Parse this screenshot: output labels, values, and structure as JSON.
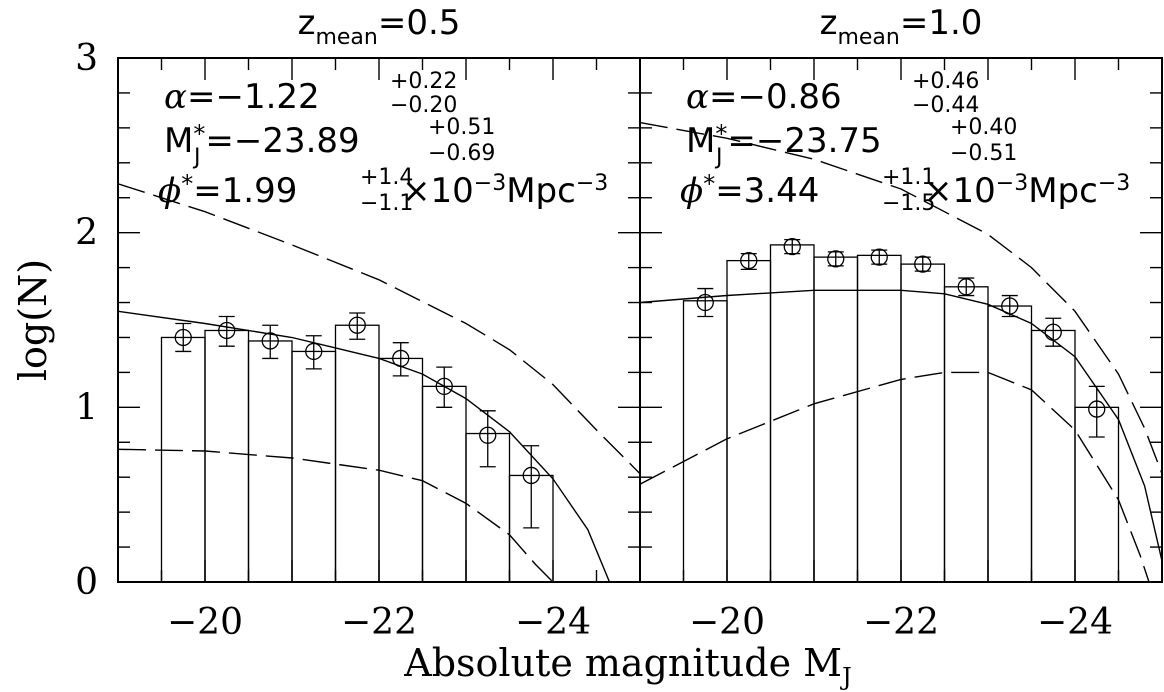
{
  "chart_data": {
    "type": "bar",
    "xlabel": "Absolute magnitude M",
    "xlabel_sub": "J",
    "ylabel": "log(N)",
    "xlim": [
      -19,
      -25
    ],
    "ylim": [
      0,
      3
    ],
    "xticks": [
      -20,
      -22,
      -24
    ],
    "xtick_labels": [
      "−20",
      "−22",
      "−24"
    ],
    "yticks": [
      0,
      1,
      2,
      3
    ],
    "ytick_labels": [
      "0",
      "1",
      "2",
      "3"
    ],
    "bin_edges": [
      -19.5,
      -20.0,
      -20.5,
      -21.0,
      -21.5,
      -22.0,
      -22.5,
      -23.0,
      -23.5,
      -24.0
    ],
    "panels": [
      {
        "title_main": "z",
        "title_sub": "mean",
        "title_value": "=0.5",
        "alpha": {
          "label": "α",
          "value": "=−1.22",
          "sup": "+0.22",
          "sub": "−0.20"
        },
        "mstar": {
          "label": "M",
          "label_sup": "*",
          "label_sub": "J",
          "value": "=−23.89",
          "sup": "+0.51",
          "sub": "−0.69"
        },
        "phistar": {
          "label": "ϕ",
          "label_sup": "*",
          "value": "=1.99",
          "sup": "+1.4",
          "sub": "−1.1",
          "unit": "×10",
          "unit_sup": "−3",
          "unit_tail": "Mpc",
          "unit_tail_sup": "−3"
        },
        "bins": [
          -19.75,
          -20.25,
          -20.75,
          -21.25,
          -21.75,
          -22.25,
          -22.75,
          -23.25,
          -23.75
        ],
        "values": [
          1.4,
          1.44,
          1.38,
          1.32,
          1.47,
          1.28,
          1.12,
          0.85,
          0.61
        ],
        "points": [
          1.4,
          1.44,
          1.38,
          1.32,
          1.47,
          1.28,
          1.12,
          0.84,
          0.61
        ],
        "err_lo": [
          0.08,
          0.09,
          0.1,
          0.1,
          0.08,
          0.1,
          0.12,
          0.18,
          0.3
        ],
        "err_hi": [
          0.08,
          0.08,
          0.09,
          0.09,
          0.07,
          0.09,
          0.11,
          0.14,
          0.17
        ],
        "solid_curve": [
          [
            -19.0,
            1.55
          ],
          [
            -20.0,
            1.48
          ],
          [
            -21.0,
            1.4
          ],
          [
            -21.5,
            1.34
          ],
          [
            -22.0,
            1.28
          ],
          [
            -22.5,
            1.19
          ],
          [
            -23.0,
            1.05
          ],
          [
            -23.5,
            0.86
          ],
          [
            -24.0,
            0.59
          ],
          [
            -24.4,
            0.3
          ],
          [
            -24.65,
            0.0
          ]
        ],
        "upper_dashed": [
          [
            -19.0,
            2.28
          ],
          [
            -20.0,
            2.12
          ],
          [
            -21.0,
            1.93
          ],
          [
            -22.0,
            1.73
          ],
          [
            -23.0,
            1.48
          ],
          [
            -23.5,
            1.33
          ],
          [
            -24.0,
            1.13
          ],
          [
            -24.5,
            0.87
          ],
          [
            -25.0,
            0.62
          ]
        ],
        "lower_dashed": [
          [
            -19.0,
            0.76
          ],
          [
            -20.0,
            0.75
          ],
          [
            -21.0,
            0.71
          ],
          [
            -22.0,
            0.64
          ],
          [
            -22.5,
            0.58
          ],
          [
            -23.0,
            0.45
          ],
          [
            -23.5,
            0.27
          ],
          [
            -23.8,
            0.1
          ],
          [
            -24.0,
            0.0
          ]
        ]
      },
      {
        "title_main": "z",
        "title_sub": "mean",
        "title_value": "=1.0",
        "alpha": {
          "label": "α",
          "value": "=−0.86",
          "sup": "+0.46",
          "sub": "−0.44"
        },
        "mstar": {
          "label": "M",
          "label_sup": "*",
          "label_sub": "J",
          "value": "=−23.75",
          "sup": "+0.40",
          "sub": "−0.51"
        },
        "phistar": {
          "label": "ϕ",
          "label_sup": "*",
          "value": "=3.44",
          "sup": "+1.1",
          "sub": "−1.5",
          "unit": "×10",
          "unit_sup": "−3",
          "unit_tail": "Mpc",
          "unit_tail_sup": "−3"
        },
        "bins": [
          -19.75,
          -20.25,
          -20.75,
          -21.25,
          -21.75,
          -22.25,
          -22.75,
          -23.25,
          -23.75
        ],
        "values": [
          1.61,
          1.84,
          1.93,
          1.86,
          1.87,
          1.82,
          1.69,
          1.58,
          1.44
        ],
        "points": [
          1.6,
          1.84,
          1.92,
          1.85,
          1.86,
          1.82,
          1.69,
          1.58,
          1.43
        ],
        "err_lo": [
          0.08,
          0.05,
          0.04,
          0.04,
          0.04,
          0.04,
          0.05,
          0.06,
          0.08
        ],
        "err_hi": [
          0.08,
          0.04,
          0.04,
          0.04,
          0.04,
          0.04,
          0.05,
          0.06,
          0.08
        ],
        "extra_bin": {
          "x": -24.25,
          "value": 1.0,
          "point": 0.99,
          "err_lo": 0.16,
          "err_hi": 0.13
        },
        "solid_curve": [
          [
            -19.0,
            1.6
          ],
          [
            -20.0,
            1.64
          ],
          [
            -21.0,
            1.67
          ],
          [
            -22.0,
            1.67
          ],
          [
            -22.5,
            1.65
          ],
          [
            -23.0,
            1.59
          ],
          [
            -23.5,
            1.48
          ],
          [
            -24.0,
            1.29
          ],
          [
            -24.5,
            0.93
          ],
          [
            -24.8,
            0.55
          ],
          [
            -25.0,
            0.12
          ]
        ],
        "upper_dashed": [
          [
            -19.0,
            2.63
          ],
          [
            -20.0,
            2.54
          ],
          [
            -21.0,
            2.42
          ],
          [
            -22.0,
            2.25
          ],
          [
            -23.0,
            1.99
          ],
          [
            -23.5,
            1.8
          ],
          [
            -24.0,
            1.55
          ],
          [
            -24.5,
            1.19
          ],
          [
            -24.8,
            0.88
          ],
          [
            -25.0,
            0.62
          ]
        ],
        "lower_dashed": [
          [
            -19.0,
            0.56
          ],
          [
            -20.0,
            0.82
          ],
          [
            -21.0,
            1.02
          ],
          [
            -22.0,
            1.16
          ],
          [
            -22.5,
            1.2
          ],
          [
            -23.0,
            1.2
          ],
          [
            -23.5,
            1.1
          ],
          [
            -24.0,
            0.87
          ],
          [
            -24.5,
            0.47
          ],
          [
            -24.75,
            0.15
          ],
          [
            -24.85,
            0.0
          ]
        ]
      }
    ]
  }
}
